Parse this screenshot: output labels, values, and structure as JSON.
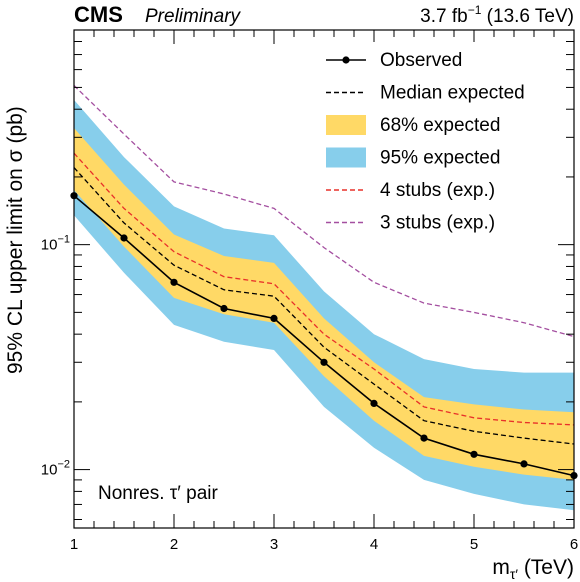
{
  "header": {
    "cms": "CMS",
    "preliminary": "Preliminary",
    "lumi_value": "3.7 fb",
    "lumi_exp": "−1",
    "lumi_energy": " (13.6 TeV)"
  },
  "annotation": "Nonres. τ′ pair",
  "chart_data": {
    "type": "line",
    "ylabel": "95% CL upper limit on σ (pb)",
    "xlabel": "m",
    "xlabel_sub": "τ′",
    "xlabel_unit": " (TeV)",
    "xlim": [
      1,
      6
    ],
    "ylim": [
      0.0055,
      0.9
    ],
    "ylog": true,
    "grid": false,
    "legend_position": "top-right",
    "x_ticks": [
      "1",
      "2",
      "3",
      "4",
      "5",
      "6"
    ],
    "y_ticks": [
      {
        "value": 0.1,
        "base": "10",
        "exp": "−1"
      },
      {
        "value": 0.01,
        "base": "10",
        "exp": "−2"
      }
    ],
    "x": [
      1,
      1.5,
      2,
      2.5,
      3,
      3.5,
      4,
      4.5,
      5,
      5.5,
      6
    ],
    "series": [
      {
        "name": "95% expected",
        "kind": "band",
        "color": "#87ceeb",
        "low": [
          0.135,
          0.075,
          0.044,
          0.037,
          0.034,
          0.019,
          0.0125,
          0.009,
          0.0078,
          0.007,
          0.0066
        ],
        "high": [
          0.44,
          0.245,
          0.148,
          0.118,
          0.11,
          0.062,
          0.04,
          0.031,
          0.028,
          0.027,
          0.027
        ]
      },
      {
        "name": "68% expected",
        "kind": "band",
        "color": "#ffd966",
        "low": [
          0.175,
          0.098,
          0.058,
          0.049,
          0.045,
          0.026,
          0.0165,
          0.0115,
          0.0103,
          0.0095,
          0.009
        ],
        "high": [
          0.33,
          0.185,
          0.111,
          0.089,
          0.083,
          0.047,
          0.03,
          0.021,
          0.0195,
          0.0185,
          0.018
        ]
      },
      {
        "name": "Median expected",
        "kind": "line",
        "color": "#000000",
        "dash": "5,3",
        "values": [
          0.22,
          0.125,
          0.081,
          0.063,
          0.059,
          0.035,
          0.024,
          0.0165,
          0.0148,
          0.0138,
          0.013
        ]
      },
      {
        "name": "4 stubs (exp.)",
        "kind": "line",
        "color": "#e8302a",
        "dash": "5,3",
        "values": [
          0.255,
          0.145,
          0.093,
          0.072,
          0.067,
          0.04,
          0.028,
          0.019,
          0.017,
          0.0162,
          0.0158
        ]
      },
      {
        "name": "3 stubs (exp.)",
        "kind": "line",
        "color": "#a44fa0",
        "dash": "5,3",
        "values": [
          0.51,
          0.31,
          0.19,
          0.168,
          0.145,
          0.097,
          0.068,
          0.055,
          0.05,
          0.045,
          0.039
        ]
      },
      {
        "name": "Observed",
        "kind": "line",
        "color": "#000000",
        "markers": true,
        "values": [
          0.165,
          0.107,
          0.068,
          0.052,
          0.047,
          0.03,
          0.0197,
          0.0138,
          0.0117,
          0.0106,
          0.0094
        ]
      }
    ],
    "legend_order": [
      "Observed",
      "Median expected",
      "68% expected",
      "95% expected",
      "4 stubs (exp.)",
      "3 stubs (exp.)"
    ]
  }
}
